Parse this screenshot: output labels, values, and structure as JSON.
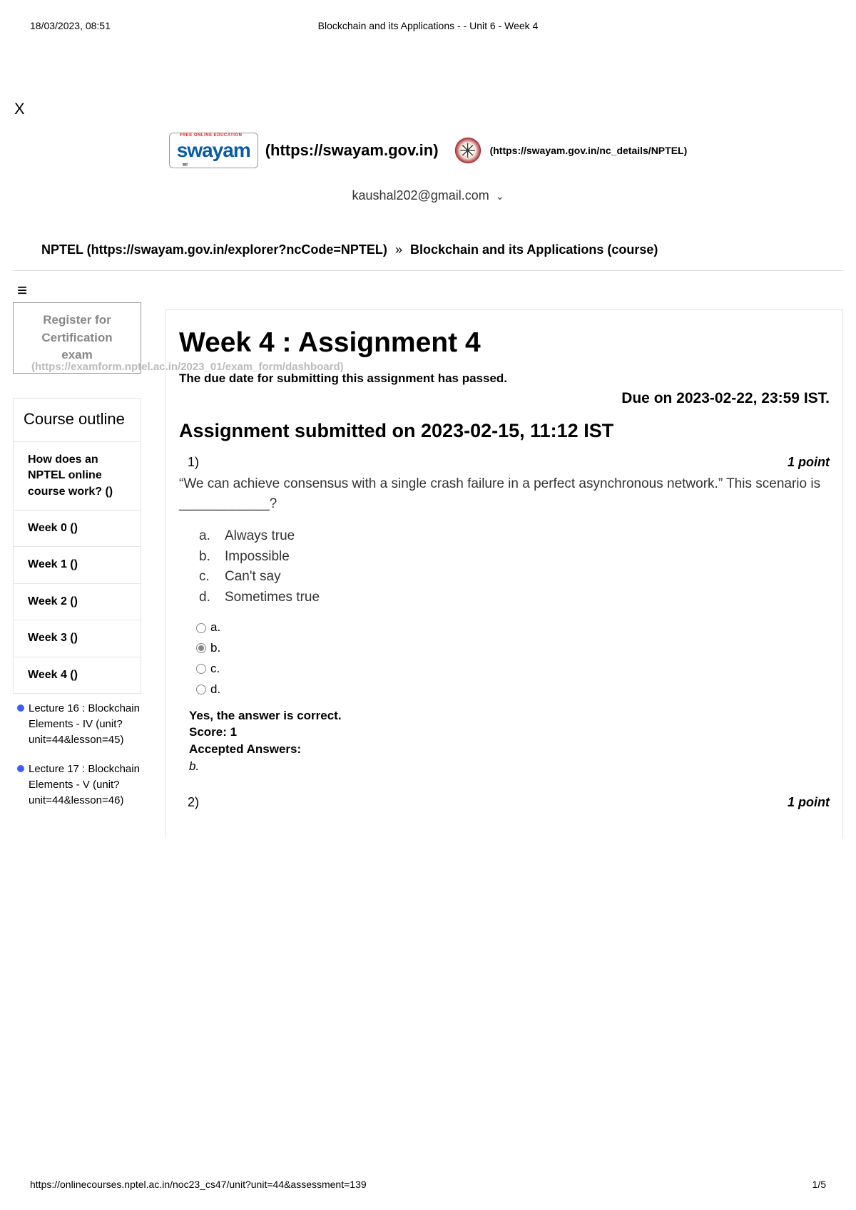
{
  "print": {
    "timestamp": "18/03/2023, 08:51",
    "title": "Blockchain and its Applications - - Unit 6 - Week 4",
    "url": "https://onlinecourses.nptel.ac.in/noc23_cs47/unit?unit=44&assessment=139",
    "page": "1/5"
  },
  "close_x": "X",
  "logos": {
    "swayam_brand": "swayam",
    "swayam_red": "FREE ONLINE EDUCATION",
    "swayam_url": "(https://swayam.gov.in)",
    "nptel_glyph": "✳",
    "nptel_url": "(https://swayam.gov.in/nc_details/NPTEL)"
  },
  "user": {
    "email": "kaushal202@gmail.com",
    "chevron": "⌄"
  },
  "breadcrumb": {
    "nptel": "NPTEL (https://swayam.gov.in/explorer?ncCode=NPTEL)",
    "sep": "»",
    "course": "Blockchain and its Applications (course)"
  },
  "hamburger": "≡",
  "sidebar": {
    "register": {
      "l1": "Register for",
      "l2": "Certification",
      "l3": "exam",
      "url": "(https://examform.nptel.ac.in/2023_01/exam_form/dashboard)"
    },
    "outline_title": "Course outline",
    "items": [
      "How does an NPTEL online course work? ()",
      "Week 0 ()",
      "Week 1 ()",
      "Week 2 ()",
      "Week 3 ()",
      "Week 4 ()"
    ],
    "lectures": [
      "Lecture 16 : Blockchain Elements - IV (unit?unit=44&lesson=45)",
      "Lecture 17 : Blockchain Elements - V (unit?unit=44&lesson=46)"
    ]
  },
  "main": {
    "title": "Week 4 : Assignment 4",
    "due_passed": "The due date for submitting this assignment has passed.",
    "due_date": "Due on 2023-02-22, 23:59 IST.",
    "submitted": "Assignment submitted on 2023-02-15, 11:12 IST",
    "q1": {
      "num": "1)",
      "points": "1 point",
      "text": "“We can achieve consensus with a single crash failure in a perfect asynchronous network.” This scenario is ____________?",
      "opts": [
        {
          "letter": "a.",
          "text": "Always true"
        },
        {
          "letter": "b.",
          "text": " Impossible"
        },
        {
          "letter": "c.",
          "text": "Can't say"
        },
        {
          "letter": "d.",
          "text": "Sometimes true"
        }
      ],
      "radios": [
        "a.",
        "b.",
        "c.",
        "d."
      ],
      "selected_index": 1,
      "correct": "Yes, the answer is correct.",
      "score": "Score: 1",
      "accepted_label": "Accepted Answers:",
      "accepted": "b."
    },
    "q2": {
      "num": "2)",
      "points": "1 point"
    }
  }
}
